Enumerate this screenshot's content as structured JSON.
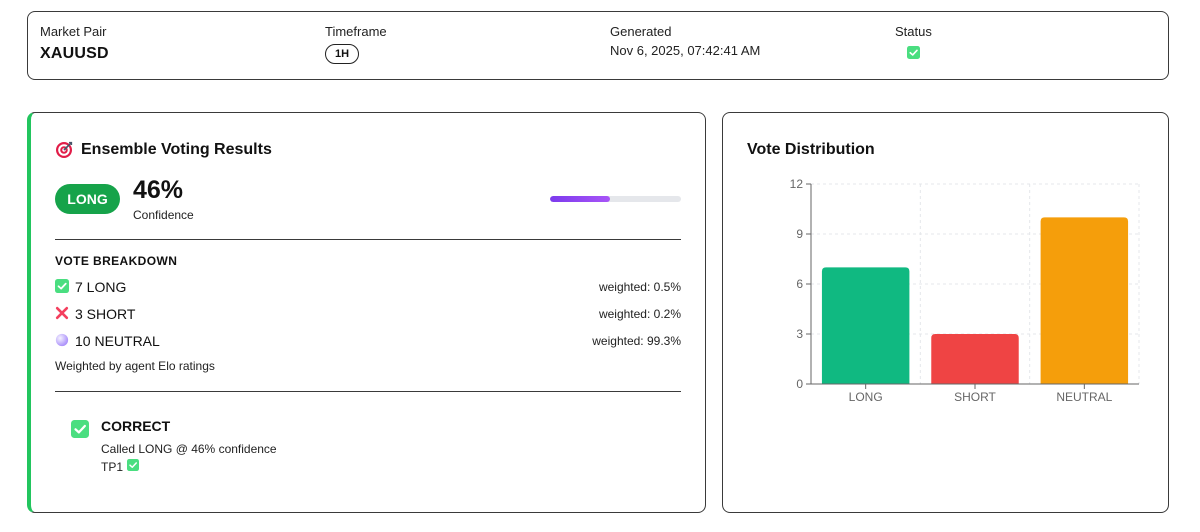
{
  "header": {
    "market_pair_label": "Market Pair",
    "market_pair_value": "XAUUSD",
    "timeframe_label": "Timeframe",
    "timeframe_value": "1H",
    "generated_label": "Generated",
    "generated_value": "Nov 6, 2025, 07:42:41 AM",
    "status_label": "Status",
    "status_icon": "check-icon"
  },
  "voting": {
    "title": "Ensemble Voting Results",
    "title_icon": "target-icon",
    "direction": "LONG",
    "confidence_value": "46%",
    "confidence_label": "Confidence",
    "confidence_fraction": 0.46,
    "breakdown_heading": "VOTE BREAKDOWN",
    "rows": [
      {
        "icon": "check-icon",
        "label": "7 LONG",
        "weighted": "weighted: 0.5%"
      },
      {
        "icon": "cross-icon",
        "label": "3 SHORT",
        "weighted": "weighted: 0.2%"
      },
      {
        "icon": "neutral-circle-icon",
        "label": "10 NEUTRAL",
        "weighted": "weighted: 99.3%"
      }
    ],
    "note": "Weighted by agent Elo ratings",
    "result": {
      "icon": "check-icon",
      "title": "CORRECT",
      "detail": "Called LONG @ 46% confidence",
      "tp_label": "TP1"
    }
  },
  "distribution": {
    "title": "Vote Distribution"
  },
  "chart_data": {
    "type": "bar",
    "title": "Vote Distribution",
    "categories": [
      "LONG",
      "SHORT",
      "NEUTRAL"
    ],
    "values": [
      7,
      3,
      10
    ],
    "colors": [
      "#10b981",
      "#ef4444",
      "#f59e0b"
    ],
    "ylim": [
      0,
      12
    ],
    "yticks": [
      0,
      3,
      6,
      9,
      12
    ],
    "xlabel": "",
    "ylabel": "",
    "grid": true
  },
  "colors": {
    "accent_green": "#16a34a",
    "progress": "#7c3aed",
    "card_border": "#3a3a3a"
  }
}
